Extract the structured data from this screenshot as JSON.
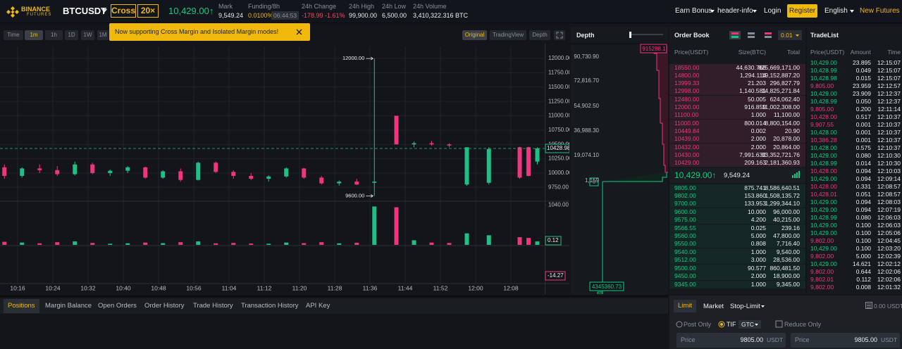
{
  "header": {
    "logo": "BINANCE",
    "logo_sub": "FUTURES",
    "symbol": "BTCUSDT",
    "margin_mode": "Cross",
    "leverage": "20×",
    "last_price": "10,429.00↑",
    "stats": [
      {
        "label": "Mark",
        "value": "9,549.24"
      },
      {
        "label": "Funding/8h",
        "value": "0.0100%",
        "extra": "06:44:53"
      },
      {
        "label": "24h Change",
        "value": "-178.99 -1.61%"
      },
      {
        "label": "24h High",
        "value": "99,900.00"
      },
      {
        "label": "24h Low",
        "value": "6,500.00"
      },
      {
        "label": "24h Volume",
        "value": "3,410,322.316 BTC"
      }
    ],
    "nav": [
      "Earn Bonus",
      "header-info",
      "Login",
      "Register",
      "English",
      "New Futures"
    ]
  },
  "toolbar": {
    "intervals": [
      "Time",
      "1m",
      "1h",
      "1D",
      "1W",
      "1M"
    ],
    "views": [
      "Original",
      "TradingView",
      "Depth"
    ]
  },
  "notice": "Now supporting Cross Margin and Isolated Margin modes!",
  "chart": {
    "type": "candlestick",
    "colors": {
      "up": "#1fbf86",
      "down": "#f0357f"
    },
    "xlim": [
      "10:12",
      "12:16"
    ],
    "xticks": [
      "10:16",
      "10:24",
      "10:32",
      "10:40",
      "10:48",
      "10:56",
      "11:04",
      "11:12",
      "11:20",
      "11:28",
      "11:36",
      "11:44",
      "11:52",
      "12:00",
      "12:08"
    ],
    "ylim": [
      9520,
      12210
    ],
    "yticks": [
      {
        "value": 9750,
        "label": "9750.00"
      },
      {
        "value": 10000,
        "label": "10000.00"
      },
      {
        "value": 10250,
        "label": "10250.00"
      },
      {
        "value": 10500,
        "label": "10500.00"
      },
      {
        "value": 10750,
        "label": "10750.00"
      },
      {
        "value": 11000,
        "label": "11000.00"
      },
      {
        "value": 11250,
        "label": "11250.00"
      },
      {
        "value": 11500,
        "label": "11500.00"
      },
      {
        "value": 11750,
        "label": "11750.00"
      },
      {
        "value": 12000,
        "label": "12000.00"
      }
    ],
    "candles": {
      "time": [
        "10:13",
        "10:17",
        "10:21",
        "10:25",
        "10:29",
        "10:33",
        "10:37",
        "10:41",
        "10:45",
        "10:49",
        "10:53",
        "10:57",
        "11:01",
        "11:05",
        "11:09",
        "11:13",
        "11:17",
        "11:21",
        "11:25",
        "11:29",
        "11:33",
        "11:37",
        "11:42",
        "11:46",
        "11:50",
        "11:54",
        "11:58",
        "12:03",
        "12:10",
        "12:12",
        "12:14"
      ],
      "open": [
        10100,
        9950,
        10080,
        10050,
        9980,
        10150,
        10000,
        10040,
        10100,
        9920,
        10030,
        9880,
        10180,
        10020,
        9950,
        9900,
        9940,
        10080,
        9920,
        9820,
        9850,
        9830,
        11000,
        10500,
        10520,
        10500,
        9800,
        9830,
        10450,
        10450,
        10200
      ],
      "high": [
        10150,
        10100,
        10150,
        10120,
        10200,
        10180,
        10060,
        10120,
        10110,
        10050,
        10080,
        10200,
        10200,
        10050,
        10000,
        9960,
        10100,
        10090,
        9950,
        9870,
        9900,
        12000,
        11000,
        10550,
        10560,
        10520,
        10450,
        10450,
        10460,
        10460,
        10450
      ],
      "low": [
        9900,
        9920,
        10000,
        9950,
        9960,
        9980,
        9950,
        10000,
        9900,
        9900,
        9850,
        9870,
        10000,
        9900,
        9880,
        9850,
        9920,
        9900,
        9800,
        9780,
        9790,
        9600,
        10500,
        10450,
        10480,
        10450,
        9780,
        9800,
        9900,
        9940,
        10150
      ],
      "close": [
        9950,
        10080,
        10050,
        9980,
        10150,
        10000,
        10040,
        10100,
        9920,
        10030,
        9880,
        10180,
        10020,
        9950,
        9900,
        9940,
        10080,
        9920,
        9820,
        9850,
        9800,
        9850,
        10500,
        10520,
        10500,
        10480,
        10450,
        10420,
        9920,
        9950,
        10428.98
      ],
      "volume": [
        80,
        60,
        40,
        70,
        90,
        50,
        30,
        40,
        60,
        45,
        70,
        90,
        40,
        50,
        35,
        30,
        60,
        45,
        70,
        40,
        55,
        1000,
        980,
        120,
        60,
        50,
        300,
        250,
        200,
        180,
        90
      ]
    },
    "last_price": 10428.98,
    "annotations": [
      {
        "label": "12000.00",
        "value": 12000,
        "time": "11:37"
      },
      {
        "label": "9600.00",
        "value": 9600,
        "time": "11:37"
      }
    ],
    "volume_ylim": [
      0,
      1100
    ],
    "volume_yticks": [
      {
        "value": 1040,
        "label": "1040.00"
      }
    ],
    "last_volume": 0.12,
    "macd_last": -14.27
  },
  "depth": {
    "title": "Depth",
    "axis_labels": [
      "90,730.90",
      "72,816.70",
      "54,902.50",
      "36,988.30",
      "19,074.10",
      "1,159"
    ],
    "ask_tag": "915288.1",
    "zero_tag": "0",
    "bid_tag": "4345360.73"
  },
  "order_book": {
    "title": "Order Book",
    "precision": "0.01",
    "columns": [
      "Price(USDT)",
      "Size(BTC)",
      "Total"
    ],
    "asks": [
      [
        "18550.00",
        "44,630.766",
        "825,669,171.00"
      ],
      [
        "14800.00",
        "1,294.114",
        "19,152,887.20"
      ],
      [
        "13999.33",
        "21.203",
        "296,827.79"
      ],
      [
        "12998.00",
        "1,140.581",
        "14,825,271.84"
      ],
      [
        "12480.00",
        "50.005",
        "624,062.40"
      ],
      [
        "12000.00",
        "916.859",
        "11,002,308.00"
      ],
      [
        "11100.00",
        "1.000",
        "11,100.00"
      ],
      [
        "11000.00",
        "800.014",
        "8,800,154.00"
      ],
      [
        "10449.84",
        "0.002",
        "20.90"
      ],
      [
        "10439.00",
        "2.000",
        "20,878.00"
      ],
      [
        "10432.00",
        "2.000",
        "20,864.00"
      ],
      [
        "10430.00",
        "7,991.632",
        "83,352,721.76"
      ],
      [
        "10429.00",
        "209.163",
        "2,181,360.93"
      ]
    ],
    "last_price": "10,429.00↑",
    "mark_price": "9,549.24",
    "bids": [
      [
        "9805.00",
        "875.741",
        "8,586,640.51"
      ],
      [
        "9802.00",
        "153.860",
        "1,508,135.72"
      ],
      [
        "9700.00",
        "133.953",
        "1,299,344.10"
      ],
      [
        "9600.00",
        "10.000",
        "96,000.00"
      ],
      [
        "9575.00",
        "4.200",
        "40,215.00"
      ],
      [
        "9566.55",
        "0.025",
        "239.16"
      ],
      [
        "9560.00",
        "5.000",
        "47,800.00"
      ],
      [
        "9550.00",
        "0.808",
        "7,716.40"
      ],
      [
        "9540.00",
        "1.000",
        "9,540.00"
      ],
      [
        "9512.00",
        "3.000",
        "28,536.00"
      ],
      [
        "9500.00",
        "90.577",
        "860,481.50"
      ],
      [
        "9450.00",
        "2.000",
        "18,900.00"
      ],
      [
        "9345.00",
        "1.000",
        "9,345.00"
      ]
    ]
  },
  "trade_list": {
    "title": "TradeList",
    "columns": [
      "Price(USDT)",
      "Amount",
      "Time"
    ],
    "trades": [
      {
        "price": "10,429.00",
        "amount": "23.895",
        "time": "12:15:07",
        "side": "buy"
      },
      {
        "price": "10,428.99",
        "amount": "0.049",
        "time": "12:15:07",
        "side": "buy"
      },
      {
        "price": "10,428.98",
        "amount": "0.015",
        "time": "12:15:07",
        "side": "buy"
      },
      {
        "price": "9,805.00",
        "amount": "23.959",
        "time": "12:12:57",
        "side": "sell"
      },
      {
        "price": "10,429.00",
        "amount": "23.909",
        "time": "12:12:37",
        "side": "buy"
      },
      {
        "price": "10,428.99",
        "amount": "0.050",
        "time": "12:12:37",
        "side": "buy"
      },
      {
        "price": "9,805.00",
        "amount": "0.200",
        "time": "12:11:14",
        "side": "sell"
      },
      {
        "price": "10,428.00",
        "amount": "0.517",
        "time": "12:10:37",
        "side": "sell"
      },
      {
        "price": "9,907.55",
        "amount": "0.001",
        "time": "12:10:37",
        "side": "sell"
      },
      {
        "price": "10,428.00",
        "amount": "0.001",
        "time": "12:10:37",
        "side": "buy"
      },
      {
        "price": "10,386.28",
        "amount": "0.001",
        "time": "12:10:37",
        "side": "sell"
      },
      {
        "price": "10,428.00",
        "amount": "0.575",
        "time": "12:10:37",
        "side": "buy"
      },
      {
        "price": "10,429.00",
        "amount": "0.080",
        "time": "12:10:30",
        "side": "buy"
      },
      {
        "price": "10,428.99",
        "amount": "0.014",
        "time": "12:10:30",
        "side": "buy"
      },
      {
        "price": "10,428.00",
        "amount": "0.094",
        "time": "12:10:03",
        "side": "sell"
      },
      {
        "price": "10,429.00",
        "amount": "0.094",
        "time": "12:09:14",
        "side": "buy"
      },
      {
        "price": "10,428.00",
        "amount": "0.331",
        "time": "12:08:57",
        "side": "sell"
      },
      {
        "price": "10,428.01",
        "amount": "0.051",
        "time": "12:08:57",
        "side": "sell"
      },
      {
        "price": "10,429.00",
        "amount": "0.094",
        "time": "12:08:03",
        "side": "buy"
      },
      {
        "price": "10,429.00",
        "amount": "0.094",
        "time": "12:07:19",
        "side": "buy"
      },
      {
        "price": "10,428.99",
        "amount": "0.080",
        "time": "12:06:03",
        "side": "buy"
      },
      {
        "price": "10,429.00",
        "amount": "0.100",
        "time": "12:06:03",
        "side": "buy"
      },
      {
        "price": "10,429.00",
        "amount": "0.100",
        "time": "12:05:06",
        "side": "buy"
      },
      {
        "price": "9,802.00",
        "amount": "0.100",
        "time": "12:04:45",
        "side": "sell"
      },
      {
        "price": "10,429.00",
        "amount": "0.100",
        "time": "12:03:20",
        "side": "buy"
      },
      {
        "price": "9,802.00",
        "amount": "5.000",
        "time": "12:02:39",
        "side": "sell"
      },
      {
        "price": "10,429.00",
        "amount": "14.621",
        "time": "12:02:12",
        "side": "buy"
      },
      {
        "price": "9,802.00",
        "amount": "0.644",
        "time": "12:02:06",
        "side": "sell"
      },
      {
        "price": "9,802.01",
        "amount": "0.112",
        "time": "12:02:06",
        "side": "sell"
      },
      {
        "price": "9,802.00",
        "amount": "0.008",
        "time": "12:01:32",
        "side": "sell"
      }
    ]
  },
  "bottom_tabs": [
    "Positions",
    "Margin Balance",
    "Open Orders",
    "Order History",
    "Trade History",
    "Transaction History",
    "API Key"
  ],
  "order_form": {
    "tabs": [
      "Limit",
      "Market",
      "Stop-Limit"
    ],
    "balance": "0.00 USDT",
    "options": [
      "Post Only",
      "TIF",
      "GTC",
      "Reduce Only"
    ],
    "inputs": [
      {
        "label": "Price",
        "value": "9805.00",
        "unit": "USDT"
      },
      {
        "label": "Price",
        "value": "9805.00",
        "unit": "USDT"
      }
    ]
  }
}
